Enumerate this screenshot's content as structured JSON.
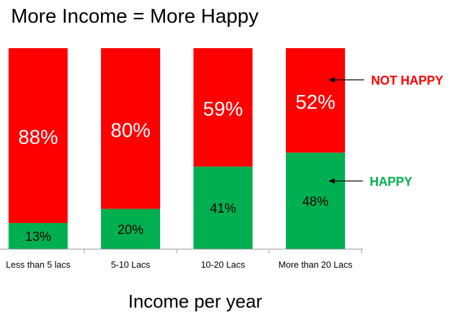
{
  "chart_data": {
    "type": "bar",
    "stacked": true,
    "title": "More Income = More Happy",
    "xlabel": "Income per year",
    "categories": [
      "Less than 5 lacs",
      "5-10 Lacs",
      "10-20 Lacs",
      "More than 20 Lacs"
    ],
    "series": [
      {
        "name": "HAPPY",
        "color": "#00b050",
        "values": [
          13,
          20,
          41,
          48
        ],
        "labels": [
          "13%",
          "20%",
          "41%",
          "48%"
        ]
      },
      {
        "name": "NOT HAPPY",
        "color": "#ff0000",
        "values": [
          88,
          80,
          59,
          52
        ],
        "labels": [
          "88%",
          "80%",
          "59%",
          "52%"
        ]
      }
    ],
    "ylim": [
      0,
      100
    ],
    "grid": false,
    "legend": "right"
  }
}
